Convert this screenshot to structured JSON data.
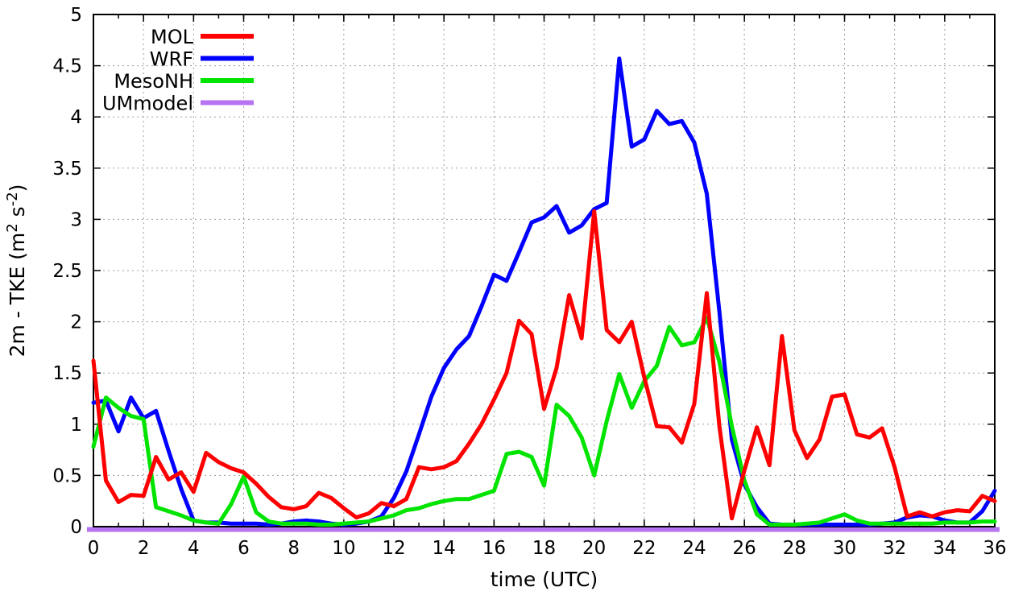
{
  "chart_data": {
    "type": "line",
    "title": "",
    "xlabel": "time (UTC)",
    "ylabel": "2m - TKE (m2 s-2)",
    "ylabel_parts": [
      {
        "text": "2m - TKE (m"
      },
      {
        "text": "2",
        "sup": true
      },
      {
        "text": " s"
      },
      {
        "text": "-2",
        "sup": true
      },
      {
        "text": ")"
      }
    ],
    "xlim": [
      0,
      36
    ],
    "ylim": [
      0,
      5
    ],
    "x_tick_values": [
      0,
      2,
      4,
      6,
      8,
      10,
      12,
      14,
      16,
      18,
      20,
      22,
      24,
      26,
      28,
      30,
      32,
      34,
      36
    ],
    "x_tick_labels": [
      "0",
      "2",
      "4",
      "6",
      "8",
      "10",
      "12",
      "14",
      "16",
      "18",
      "20",
      "22",
      "24",
      "26",
      "28",
      "30",
      "32",
      "34",
      "36"
    ],
    "x_minor_tick_step": 1,
    "y_tick_values": [
      0,
      0.5,
      1,
      1.5,
      2,
      2.5,
      3,
      3.5,
      4,
      4.5,
      5
    ],
    "y_tick_labels": [
      "0",
      "0.5",
      "1",
      "1.5",
      "2",
      "2.5",
      "3",
      "3.5",
      "4",
      "4.5",
      "5"
    ],
    "grid": true,
    "grid_color": "#9e9e9e",
    "border_color": "#000000",
    "background": "#ffffff",
    "legend_position": "top-left-inside",
    "x": [
      0,
      0.5,
      1,
      1.5,
      2,
      2.5,
      3,
      3.5,
      4,
      4.5,
      5,
      5.5,
      6,
      6.5,
      7,
      7.5,
      8,
      8.5,
      9,
      9.5,
      10,
      10.5,
      11,
      11.5,
      12,
      12.5,
      13,
      13.5,
      14,
      14.5,
      15,
      15.5,
      16,
      16.5,
      17,
      17.5,
      18,
      18.5,
      19,
      19.5,
      20,
      20.5,
      21,
      21.5,
      22,
      22.5,
      23,
      23.5,
      24,
      24.5,
      25,
      25.5,
      26,
      26.5,
      27,
      27.5,
      28,
      28.5,
      29,
      29.5,
      30,
      30.5,
      31,
      31.5,
      32,
      32.5,
      33,
      33.5,
      34,
      34.5,
      35,
      35.5,
      36
    ],
    "series": [
      {
        "name": "MOL",
        "color": "#ff0000",
        "values": [
          1.62,
          0.45,
          0.24,
          0.31,
          0.3,
          0.68,
          0.46,
          0.53,
          0.34,
          0.72,
          0.63,
          0.57,
          0.53,
          0.42,
          0.29,
          0.19,
          0.17,
          0.2,
          0.33,
          0.28,
          0.18,
          0.09,
          0.13,
          0.23,
          0.2,
          0.27,
          0.58,
          0.56,
          0.58,
          0.64,
          0.81,
          1.0,
          1.24,
          1.5,
          2.01,
          1.88,
          1.15,
          1.55,
          2.26,
          1.84,
          3.08,
          1.92,
          1.8,
          2.0,
          1.46,
          0.98,
          0.97,
          0.82,
          1.2,
          2.28,
          0.98,
          0.08,
          0.55,
          0.97,
          0.6,
          1.86,
          0.94,
          0.67,
          0.85,
          1.27,
          1.29,
          0.9,
          0.87,
          0.96,
          0.58,
          0.1,
          0.14,
          0.1,
          0.14,
          0.16,
          0.15,
          0.3,
          0.25
        ]
      },
      {
        "name": "WRF",
        "color": "#0000ff",
        "values": [
          1.21,
          1.23,
          0.93,
          1.26,
          1.06,
          1.13,
          0.74,
          0.37,
          0.06,
          0.04,
          0.04,
          0.03,
          0.03,
          0.03,
          0.02,
          0.03,
          0.05,
          0.06,
          0.05,
          0.03,
          0.02,
          0.03,
          0.05,
          0.1,
          0.28,
          0.54,
          0.9,
          1.27,
          1.55,
          1.73,
          1.86,
          2.15,
          2.46,
          2.4,
          2.68,
          2.97,
          3.02,
          3.13,
          2.87,
          2.94,
          3.1,
          3.16,
          4.57,
          3.71,
          3.78,
          4.06,
          3.93,
          3.96,
          3.75,
          3.25,
          2.1,
          0.85,
          0.41,
          0.19,
          0.03,
          0.02,
          0.02,
          0.02,
          0.02,
          0.02,
          0.02,
          0.02,
          0.02,
          0.03,
          0.04,
          0.09,
          0.11,
          0.1,
          0.06,
          0.04,
          0.04,
          0.15,
          0.35
        ]
      },
      {
        "name": "MesoNH",
        "color": "#00e400",
        "values": [
          0.78,
          1.26,
          1.16,
          1.08,
          1.05,
          0.19,
          0.15,
          0.11,
          0.06,
          0.04,
          0.03,
          0.22,
          0.49,
          0.14,
          0.05,
          0.03,
          0.03,
          0.03,
          0.02,
          0.02,
          0.03,
          0.04,
          0.05,
          0.08,
          0.11,
          0.16,
          0.18,
          0.22,
          0.25,
          0.27,
          0.27,
          0.31,
          0.35,
          0.71,
          0.73,
          0.68,
          0.4,
          1.19,
          1.08,
          0.87,
          0.5,
          1.03,
          1.49,
          1.16,
          1.42,
          1.57,
          1.95,
          1.77,
          1.8,
          2.04,
          1.61,
          0.98,
          0.45,
          0.12,
          0.02,
          0.02,
          0.02,
          0.03,
          0.04,
          0.08,
          0.12,
          0.06,
          0.03,
          0.03,
          0.03,
          0.03,
          0.03,
          0.03,
          0.04,
          0.04,
          0.04,
          0.05,
          0.05
        ]
      },
      {
        "name": "UMmodel",
        "color": "#b673f2",
        "constant_value": 0
      }
    ]
  },
  "legend": {
    "items": [
      {
        "label": "MOL",
        "color": "#ff0000"
      },
      {
        "label": "WRF",
        "color": "#0000ff"
      },
      {
        "label": "MesoNH",
        "color": "#00e400"
      },
      {
        "label": "UMmodel",
        "color": "#b673f2"
      }
    ]
  }
}
